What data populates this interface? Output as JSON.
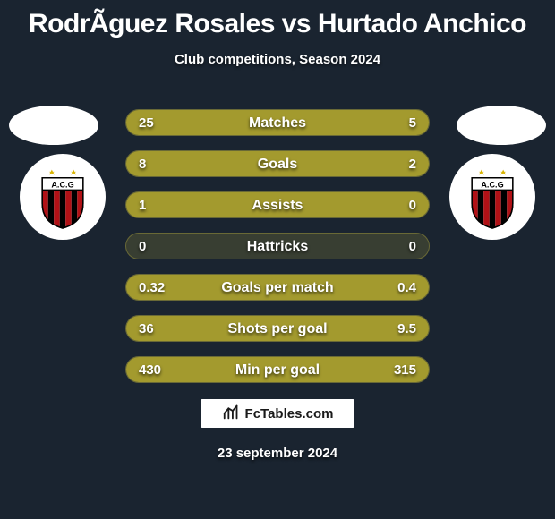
{
  "title": "RodrÃ­guez Rosales vs Hurtado Anchico",
  "subtitle": "Club competitions, Season 2024",
  "footer_brand": "FcTables.com",
  "date": "23 september 2024",
  "colors": {
    "background": "#1a2430",
    "bar_fill": "#a39a2e",
    "bar_empty": "rgba(180,170,60,0.18)",
    "text": "#ffffff",
    "brand_text": "#1a1a1a",
    "badge_bg": "#ffffff"
  },
  "crest": {
    "stripes": [
      "#b11116",
      "#000000"
    ],
    "letters": "A.C.G",
    "star_color": "#d9b400"
  },
  "rows": [
    {
      "label": "Matches",
      "left": "25",
      "right": "5",
      "lv": 25,
      "rv": 5
    },
    {
      "label": "Goals",
      "left": "8",
      "right": "2",
      "lv": 8,
      "rv": 2
    },
    {
      "label": "Assists",
      "left": "1",
      "right": "0",
      "lv": 1,
      "rv": 0
    },
    {
      "label": "Hattricks",
      "left": "0",
      "right": "0",
      "lv": 0,
      "rv": 0
    },
    {
      "label": "Goals per match",
      "left": "0.32",
      "right": "0.4",
      "lv": 0.32,
      "rv": 0.4
    },
    {
      "label": "Shots per goal",
      "left": "36",
      "right": "9.5",
      "lv": 36,
      "rv": 9.5
    },
    {
      "label": "Min per goal",
      "left": "430",
      "right": "315",
      "lv": 430,
      "rv": 315
    }
  ]
}
